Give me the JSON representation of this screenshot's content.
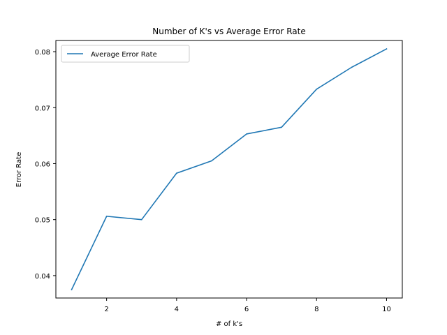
{
  "chart_data": {
    "type": "line",
    "title": "Number of K's vs Average Error Rate",
    "xlabel": "# of k's",
    "ylabel": "Error Rate",
    "xlim": [
      0.55,
      10.45
    ],
    "ylim": [
      0.036,
      0.082
    ],
    "xticks": [
      2,
      4,
      6,
      8,
      10
    ],
    "yticks": [
      0.04,
      0.05,
      0.06,
      0.07,
      0.08
    ],
    "xtick_labels": [
      "2",
      "4",
      "6",
      "8",
      "10"
    ],
    "ytick_labels": [
      "0.04",
      "0.05",
      "0.06",
      "0.07",
      "0.08"
    ],
    "grid": false,
    "legend_position": "top-left",
    "series": [
      {
        "name": "Average Error Rate",
        "color": "#1f77b4",
        "x": [
          1,
          2,
          3,
          4,
          5,
          6,
          7,
          8,
          9,
          10
        ],
        "y": [
          0.0375,
          0.0506,
          0.05,
          0.0583,
          0.0605,
          0.0653,
          0.0665,
          0.0733,
          0.0772,
          0.0805
        ]
      }
    ]
  }
}
